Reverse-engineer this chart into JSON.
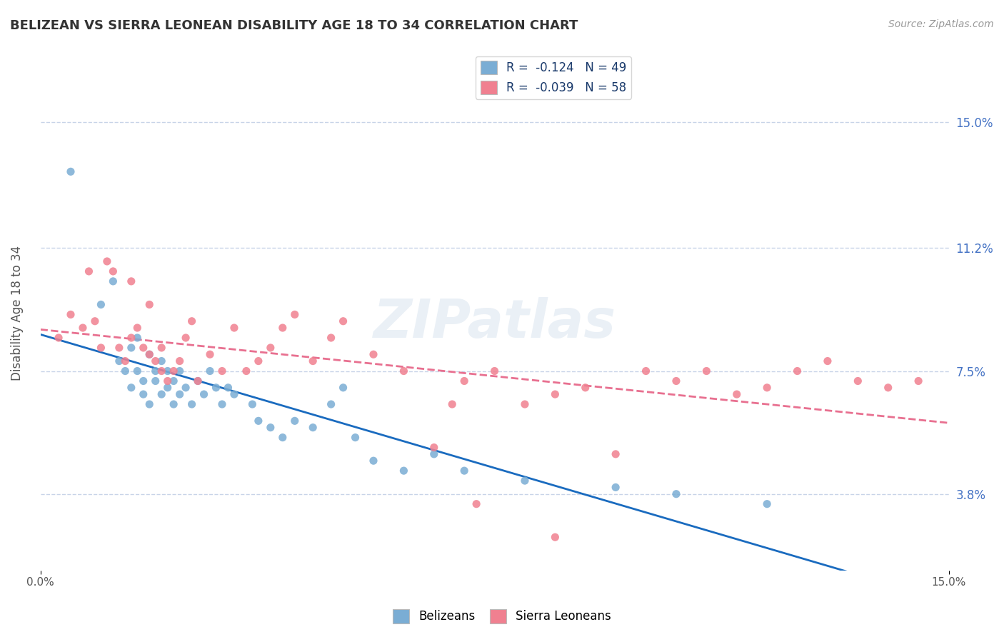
{
  "title": "BELIZEAN VS SIERRA LEONEAN DISABILITY AGE 18 TO 34 CORRELATION CHART",
  "source_text": "Source: ZipAtlas.com",
  "ylabel": "Disability Age 18 to 34",
  "ytick_values": [
    3.8,
    7.5,
    11.2,
    15.0
  ],
  "xlim": [
    0.0,
    15.0
  ],
  "ylim": [
    1.5,
    17.0
  ],
  "belizean_color": "#7aadd4",
  "sierraleonean_color": "#f08090",
  "trend_belizean_color": "#1a6bbf",
  "trend_sierraleonean_color": "#e87090",
  "watermark": "ZIPatlas",
  "belizean_x": [
    0.5,
    1.0,
    1.2,
    1.3,
    1.4,
    1.5,
    1.5,
    1.6,
    1.6,
    1.7,
    1.7,
    1.8,
    1.8,
    1.9,
    1.9,
    2.0,
    2.0,
    2.1,
    2.1,
    2.2,
    2.2,
    2.3,
    2.3,
    2.4,
    2.5,
    2.6,
    2.7,
    2.8,
    2.9,
    3.0,
    3.1,
    3.2,
    3.5,
    3.6,
    3.8,
    4.0,
    4.2,
    4.5,
    4.8,
    5.0,
    5.2,
    5.5,
    6.0,
    6.5,
    7.0,
    8.0,
    9.5,
    10.5,
    12.0
  ],
  "belizean_y": [
    13.5,
    9.5,
    10.2,
    7.8,
    7.5,
    8.2,
    7.0,
    7.5,
    8.5,
    6.8,
    7.2,
    6.5,
    8.0,
    7.2,
    7.5,
    6.8,
    7.8,
    7.0,
    7.5,
    7.2,
    6.5,
    6.8,
    7.5,
    7.0,
    6.5,
    7.2,
    6.8,
    7.5,
    7.0,
    6.5,
    7.0,
    6.8,
    6.5,
    6.0,
    5.8,
    5.5,
    6.0,
    5.8,
    6.5,
    7.0,
    5.5,
    4.8,
    4.5,
    5.0,
    4.5,
    4.2,
    4.0,
    3.8,
    3.5
  ],
  "sierraleonean_x": [
    0.3,
    0.5,
    0.7,
    0.8,
    0.9,
    1.0,
    1.1,
    1.2,
    1.3,
    1.4,
    1.5,
    1.5,
    1.6,
    1.7,
    1.8,
    1.8,
    1.9,
    2.0,
    2.0,
    2.1,
    2.2,
    2.3,
    2.4,
    2.5,
    2.6,
    2.8,
    3.0,
    3.2,
    3.4,
    3.6,
    3.8,
    4.0,
    4.2,
    4.5,
    4.8,
    5.0,
    5.5,
    6.0,
    6.5,
    7.0,
    7.5,
    8.0,
    8.5,
    9.0,
    9.5,
    10.0,
    10.5,
    11.0,
    11.5,
    12.0,
    12.5,
    13.0,
    13.5,
    14.0,
    14.5,
    8.5,
    7.2,
    6.8
  ],
  "sierraleonean_y": [
    8.5,
    9.2,
    8.8,
    10.5,
    9.0,
    8.2,
    10.8,
    10.5,
    8.2,
    7.8,
    8.5,
    10.2,
    8.8,
    8.2,
    9.5,
    8.0,
    7.8,
    7.5,
    8.2,
    7.2,
    7.5,
    7.8,
    8.5,
    9.0,
    7.2,
    8.0,
    7.5,
    8.8,
    7.5,
    7.8,
    8.2,
    8.8,
    9.2,
    7.8,
    8.5,
    9.0,
    8.0,
    7.5,
    5.2,
    7.2,
    7.5,
    6.5,
    6.8,
    7.0,
    5.0,
    7.5,
    7.2,
    7.5,
    6.8,
    7.0,
    7.5,
    7.8,
    7.2,
    7.0,
    7.2,
    2.5,
    3.5,
    6.5
  ],
  "grid_color": "#c8d4e8",
  "background_color": "#ffffff",
  "plot_bg_color": "#ffffff",
  "legend_r1": "R = ",
  "legend_v1": "-0.124",
  "legend_n1": "  N = 49",
  "legend_r2": "R = ",
  "legend_v2": "-0.039",
  "legend_n2": "  N = 58"
}
